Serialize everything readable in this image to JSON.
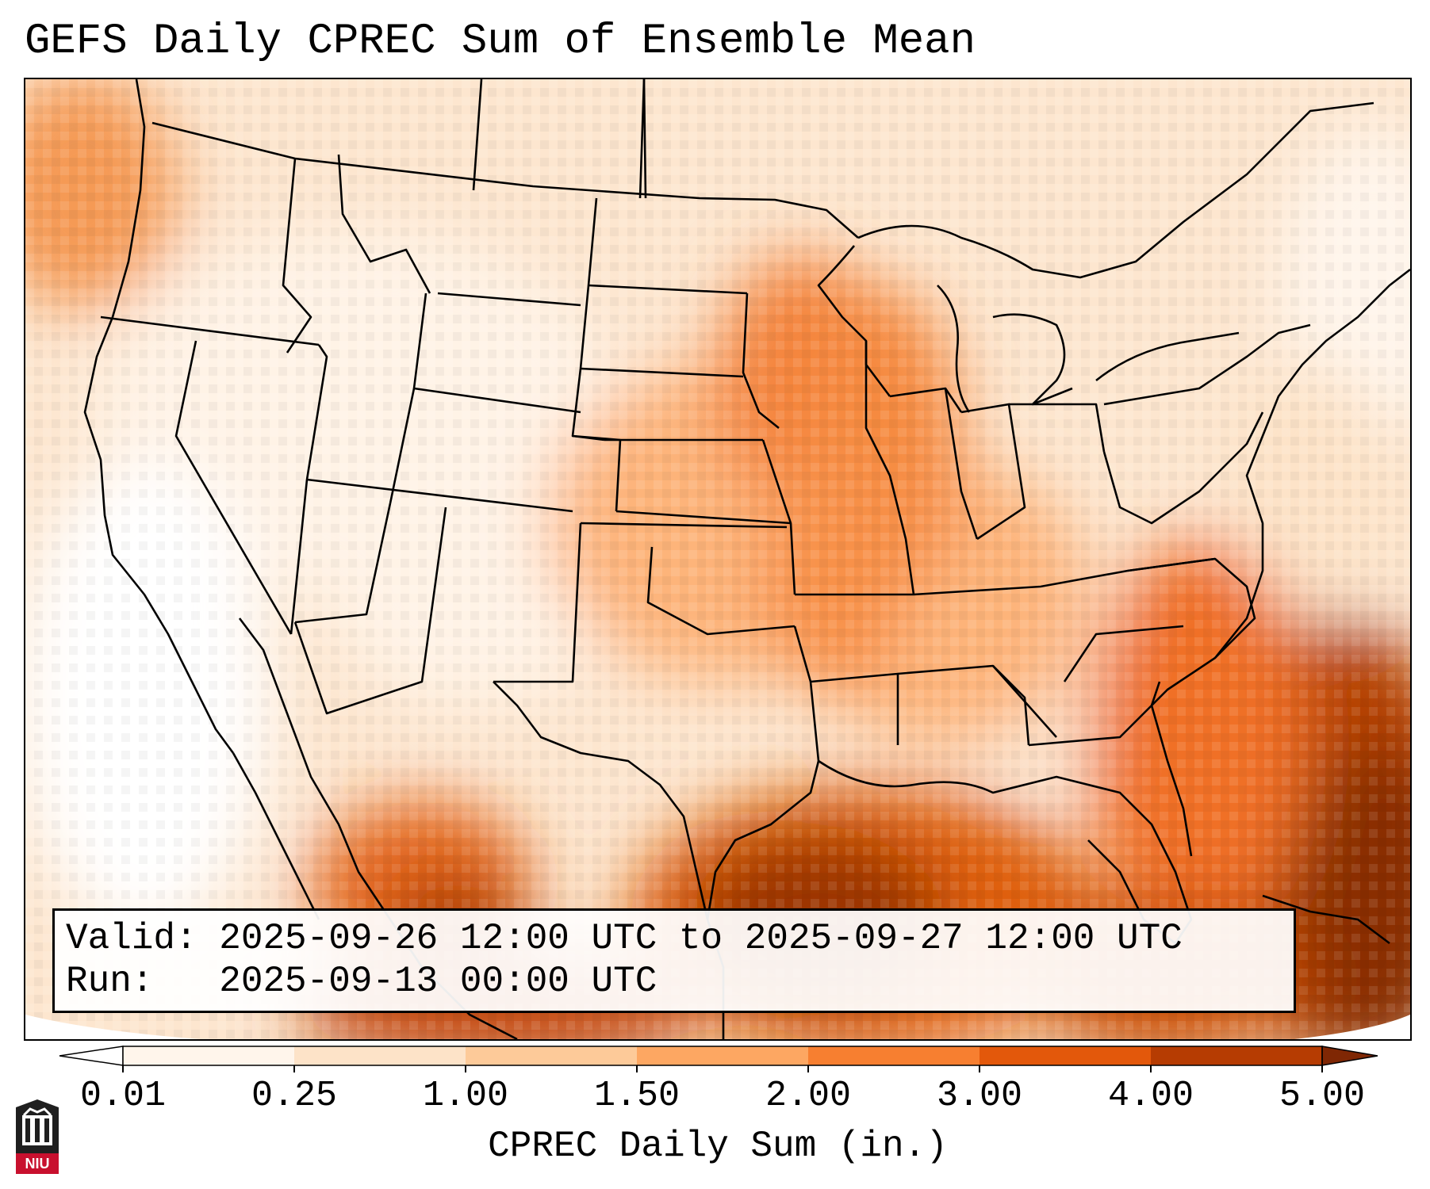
{
  "title": "GEFS Daily CPREC Sum of Ensemble Mean",
  "info": {
    "valid": "Valid: 2025-09-26 12:00 UTC to 2025-09-27 12:00 UTC",
    "run": "Run:   2025-09-13 00:00 UTC"
  },
  "colorbar": {
    "label": "CPREC Daily Sum (in.)",
    "ticks": [
      "0.01",
      "0.25",
      "1.00",
      "1.50",
      "2.00",
      "3.00",
      "4.00",
      "5.00"
    ],
    "bins": [
      {
        "color": "#fff5eb"
      },
      {
        "color": "#fde3c8"
      },
      {
        "color": "#fdca99"
      },
      {
        "color": "#fda762"
      },
      {
        "color": "#f77f30"
      },
      {
        "color": "#e3580b"
      },
      {
        "color": "#b63c02"
      }
    ],
    "under_color": "#ffffff",
    "over_color": "#7f2704"
  },
  "logo": {
    "text": "NIU"
  }
}
